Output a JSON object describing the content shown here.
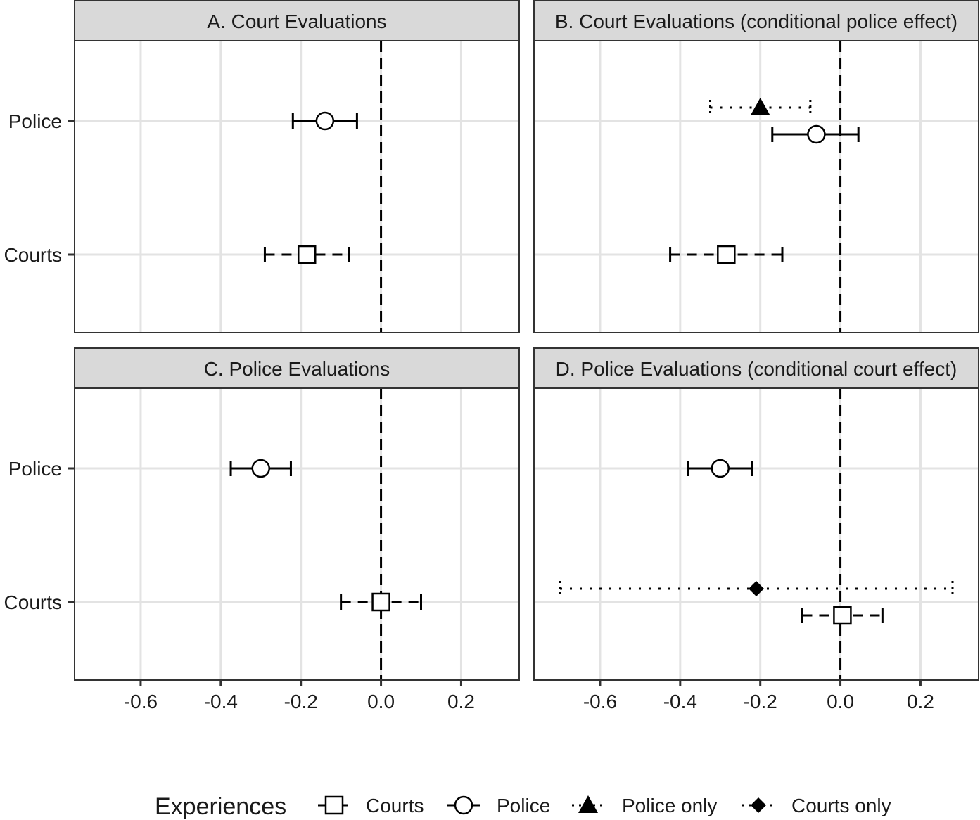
{
  "chart_data": {
    "type": "scatter",
    "x_ticks": [
      "-0.6",
      "-0.4",
      "-0.2",
      "0.0",
      "0.2"
    ],
    "x_tick_values": [
      -0.6,
      -0.4,
      -0.2,
      0.0,
      0.2
    ],
    "xlim": [
      -0.765,
      0.345
    ],
    "categories": [
      "Police",
      "Courts"
    ],
    "reference_line": 0,
    "grid": true,
    "legend": {
      "title": "Experiences",
      "placement": "bottom",
      "entries": [
        {
          "key": "courts",
          "label": "Courts",
          "shape": "open-square",
          "line": "dashed",
          "color": "#000000"
        },
        {
          "key": "police",
          "label": "Police",
          "shape": "open-circle",
          "line": "solid",
          "color": "#000000"
        },
        {
          "key": "police_only",
          "label": "Police only",
          "shape": "filled-triangle",
          "line": "dotted",
          "color": "#000000"
        },
        {
          "key": "courts_only",
          "label": "Courts only",
          "shape": "filled-diamond",
          "line": "dotted",
          "color": "#000000"
        }
      ]
    },
    "panels": [
      {
        "title": "A. Court Evaluations",
        "points": [
          {
            "category": "Police",
            "series": "police",
            "estimate": -0.14,
            "lower": -0.22,
            "upper": -0.06
          },
          {
            "category": "Courts",
            "series": "courts",
            "estimate": -0.185,
            "lower": -0.29,
            "upper": -0.08
          }
        ]
      },
      {
        "title": "B. Court Evaluations (conditional police effect)",
        "points": [
          {
            "category": "Police",
            "series": "police_only",
            "estimate": -0.2,
            "lower": -0.325,
            "upper": -0.075
          },
          {
            "category": "Police",
            "series": "police",
            "estimate": -0.06,
            "lower": -0.17,
            "upper": 0.045
          },
          {
            "category": "Courts",
            "series": "courts",
            "estimate": -0.285,
            "lower": -0.425,
            "upper": -0.145
          }
        ]
      },
      {
        "title": "C. Police Evaluations",
        "points": [
          {
            "category": "Police",
            "series": "police",
            "estimate": -0.3,
            "lower": -0.375,
            "upper": -0.225
          },
          {
            "category": "Courts",
            "series": "courts",
            "estimate": 0.0,
            "lower": -0.1,
            "upper": 0.1
          }
        ]
      },
      {
        "title": "D. Police Evaluations (conditional court effect)",
        "points": [
          {
            "category": "Police",
            "series": "police",
            "estimate": -0.3,
            "lower": -0.38,
            "upper": -0.22
          },
          {
            "category": "Courts",
            "series": "courts_only",
            "estimate": -0.21,
            "lower": -0.7,
            "upper": 0.28
          },
          {
            "category": "Courts",
            "series": "courts",
            "estimate": 0.005,
            "lower": -0.095,
            "upper": 0.105
          }
        ]
      }
    ]
  }
}
